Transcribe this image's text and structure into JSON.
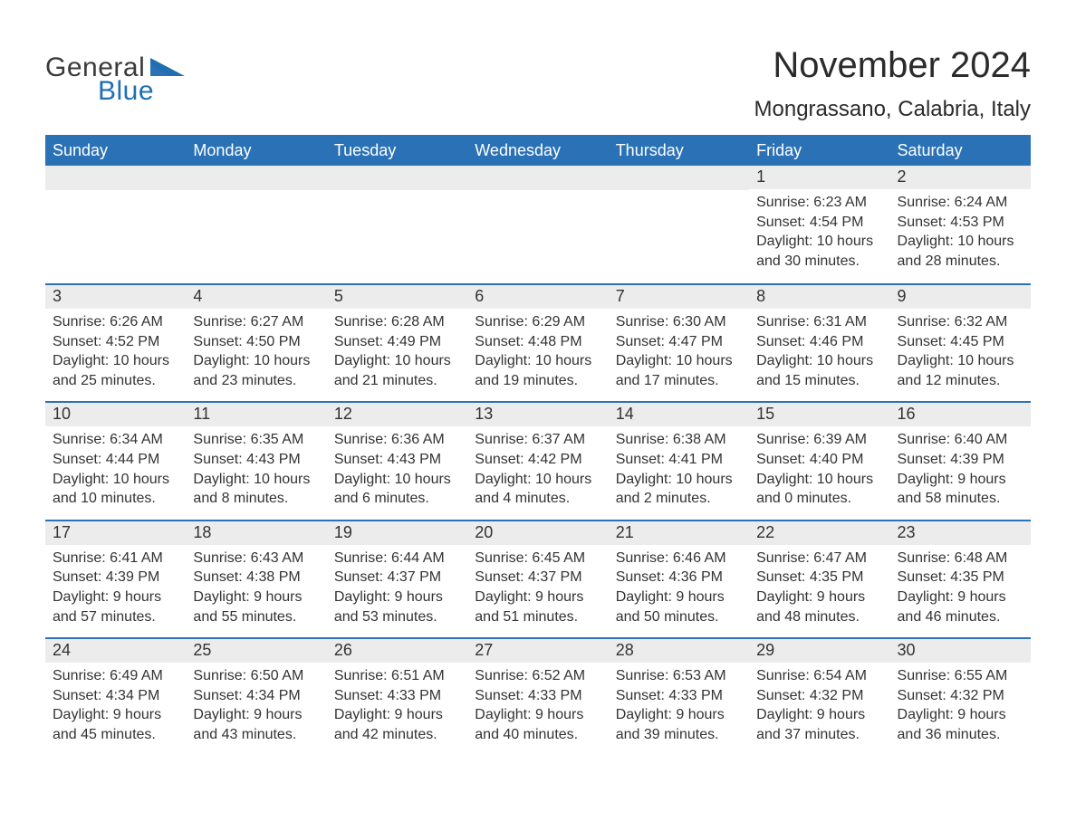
{
  "logo": {
    "word1": "General",
    "word2": "Blue",
    "word1_color": "#3a3a3a",
    "word2_color": "#1f6fb2",
    "triangle_color": "#1f6fb2"
  },
  "title": "November 2024",
  "location": "Mongrassano, Calabria, Italy",
  "colors": {
    "header_bg": "#2a72b5",
    "header_text": "#ffffff",
    "daynum_bg": "#ececec",
    "rule": "#2a72b5",
    "body_text": "#333333",
    "page_bg": "#ffffff"
  },
  "fonts": {
    "title_size_pt": 30,
    "location_size_pt": 18,
    "header_size_pt": 14,
    "daynum_size_pt": 14,
    "body_size_pt": 12
  },
  "day_headers": [
    "Sunday",
    "Monday",
    "Tuesday",
    "Wednesday",
    "Thursday",
    "Friday",
    "Saturday"
  ],
  "weeks": [
    [
      null,
      null,
      null,
      null,
      null,
      {
        "n": "1",
        "sunrise": "Sunrise: 6:23 AM",
        "sunset": "Sunset: 4:54 PM",
        "daylight": "Daylight: 10 hours and 30 minutes."
      },
      {
        "n": "2",
        "sunrise": "Sunrise: 6:24 AM",
        "sunset": "Sunset: 4:53 PM",
        "daylight": "Daylight: 10 hours and 28 minutes."
      }
    ],
    [
      {
        "n": "3",
        "sunrise": "Sunrise: 6:26 AM",
        "sunset": "Sunset: 4:52 PM",
        "daylight": "Daylight: 10 hours and 25 minutes."
      },
      {
        "n": "4",
        "sunrise": "Sunrise: 6:27 AM",
        "sunset": "Sunset: 4:50 PM",
        "daylight": "Daylight: 10 hours and 23 minutes."
      },
      {
        "n": "5",
        "sunrise": "Sunrise: 6:28 AM",
        "sunset": "Sunset: 4:49 PM",
        "daylight": "Daylight: 10 hours and 21 minutes."
      },
      {
        "n": "6",
        "sunrise": "Sunrise: 6:29 AM",
        "sunset": "Sunset: 4:48 PM",
        "daylight": "Daylight: 10 hours and 19 minutes."
      },
      {
        "n": "7",
        "sunrise": "Sunrise: 6:30 AM",
        "sunset": "Sunset: 4:47 PM",
        "daylight": "Daylight: 10 hours and 17 minutes."
      },
      {
        "n": "8",
        "sunrise": "Sunrise: 6:31 AM",
        "sunset": "Sunset: 4:46 PM",
        "daylight": "Daylight: 10 hours and 15 minutes."
      },
      {
        "n": "9",
        "sunrise": "Sunrise: 6:32 AM",
        "sunset": "Sunset: 4:45 PM",
        "daylight": "Daylight: 10 hours and 12 minutes."
      }
    ],
    [
      {
        "n": "10",
        "sunrise": "Sunrise: 6:34 AM",
        "sunset": "Sunset: 4:44 PM",
        "daylight": "Daylight: 10 hours and 10 minutes."
      },
      {
        "n": "11",
        "sunrise": "Sunrise: 6:35 AM",
        "sunset": "Sunset: 4:43 PM",
        "daylight": "Daylight: 10 hours and 8 minutes."
      },
      {
        "n": "12",
        "sunrise": "Sunrise: 6:36 AM",
        "sunset": "Sunset: 4:43 PM",
        "daylight": "Daylight: 10 hours and 6 minutes."
      },
      {
        "n": "13",
        "sunrise": "Sunrise: 6:37 AM",
        "sunset": "Sunset: 4:42 PM",
        "daylight": "Daylight: 10 hours and 4 minutes."
      },
      {
        "n": "14",
        "sunrise": "Sunrise: 6:38 AM",
        "sunset": "Sunset: 4:41 PM",
        "daylight": "Daylight: 10 hours and 2 minutes."
      },
      {
        "n": "15",
        "sunrise": "Sunrise: 6:39 AM",
        "sunset": "Sunset: 4:40 PM",
        "daylight": "Daylight: 10 hours and 0 minutes."
      },
      {
        "n": "16",
        "sunrise": "Sunrise: 6:40 AM",
        "sunset": "Sunset: 4:39 PM",
        "daylight": "Daylight: 9 hours and 58 minutes."
      }
    ],
    [
      {
        "n": "17",
        "sunrise": "Sunrise: 6:41 AM",
        "sunset": "Sunset: 4:39 PM",
        "daylight": "Daylight: 9 hours and 57 minutes."
      },
      {
        "n": "18",
        "sunrise": "Sunrise: 6:43 AM",
        "sunset": "Sunset: 4:38 PM",
        "daylight": "Daylight: 9 hours and 55 minutes."
      },
      {
        "n": "19",
        "sunrise": "Sunrise: 6:44 AM",
        "sunset": "Sunset: 4:37 PM",
        "daylight": "Daylight: 9 hours and 53 minutes."
      },
      {
        "n": "20",
        "sunrise": "Sunrise: 6:45 AM",
        "sunset": "Sunset: 4:37 PM",
        "daylight": "Daylight: 9 hours and 51 minutes."
      },
      {
        "n": "21",
        "sunrise": "Sunrise: 6:46 AM",
        "sunset": "Sunset: 4:36 PM",
        "daylight": "Daylight: 9 hours and 50 minutes."
      },
      {
        "n": "22",
        "sunrise": "Sunrise: 6:47 AM",
        "sunset": "Sunset: 4:35 PM",
        "daylight": "Daylight: 9 hours and 48 minutes."
      },
      {
        "n": "23",
        "sunrise": "Sunrise: 6:48 AM",
        "sunset": "Sunset: 4:35 PM",
        "daylight": "Daylight: 9 hours and 46 minutes."
      }
    ],
    [
      {
        "n": "24",
        "sunrise": "Sunrise: 6:49 AM",
        "sunset": "Sunset: 4:34 PM",
        "daylight": "Daylight: 9 hours and 45 minutes."
      },
      {
        "n": "25",
        "sunrise": "Sunrise: 6:50 AM",
        "sunset": "Sunset: 4:34 PM",
        "daylight": "Daylight: 9 hours and 43 minutes."
      },
      {
        "n": "26",
        "sunrise": "Sunrise: 6:51 AM",
        "sunset": "Sunset: 4:33 PM",
        "daylight": "Daylight: 9 hours and 42 minutes."
      },
      {
        "n": "27",
        "sunrise": "Sunrise: 6:52 AM",
        "sunset": "Sunset: 4:33 PM",
        "daylight": "Daylight: 9 hours and 40 minutes."
      },
      {
        "n": "28",
        "sunrise": "Sunrise: 6:53 AM",
        "sunset": "Sunset: 4:33 PM",
        "daylight": "Daylight: 9 hours and 39 minutes."
      },
      {
        "n": "29",
        "sunrise": "Sunrise: 6:54 AM",
        "sunset": "Sunset: 4:32 PM",
        "daylight": "Daylight: 9 hours and 37 minutes."
      },
      {
        "n": "30",
        "sunrise": "Sunrise: 6:55 AM",
        "sunset": "Sunset: 4:32 PM",
        "daylight": "Daylight: 9 hours and 36 minutes."
      }
    ]
  ]
}
